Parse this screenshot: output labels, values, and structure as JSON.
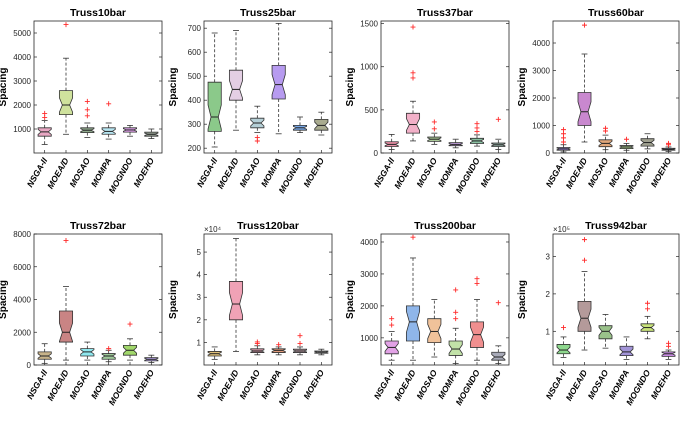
{
  "figure": {
    "ylabel_shared": "Spacing"
  },
  "chart_data": [
    {
      "type": "boxplot",
      "title": "Truss10bar",
      "ylabel": "Spacing",
      "categories": [
        "NSGA-II",
        "MOEA/D",
        "MOSAO",
        "MOMPA",
        "MOGNDO",
        "MOEHO"
      ],
      "ylim": [
        0,
        5500
      ],
      "yticks": [
        1000,
        2000,
        3000,
        4000,
        5000
      ],
      "exponent": "",
      "colors": [
        "#e8a7c3",
        "#cfe29d",
        "#8fa88c",
        "#b7e6f2",
        "#e2a2ee",
        "#95a093"
      ],
      "boxes": [
        {
          "min": 350,
          "q1": 700,
          "median": 880,
          "q3": 1050,
          "max": 1350,
          "outliers": [
            1480,
            1650
          ]
        },
        {
          "min": 780,
          "q1": 1600,
          "median": 2000,
          "q3": 2600,
          "max": 3950,
          "outliers": [
            5350
          ]
        },
        {
          "min": 650,
          "q1": 850,
          "median": 950,
          "q3": 1050,
          "max": 1250,
          "outliers": [
            1550,
            1800,
            2150
          ]
        },
        {
          "min": 580,
          "q1": 780,
          "median": 900,
          "q3": 1050,
          "max": 1250,
          "outliers": [
            2050
          ]
        },
        {
          "min": 700,
          "q1": 870,
          "median": 960,
          "q3": 1050,
          "max": 1150,
          "outliers": []
        },
        {
          "min": 600,
          "q1": 700,
          "median": 780,
          "q3": 870,
          "max": 1000,
          "outliers": []
        }
      ]
    },
    {
      "type": "boxplot",
      "title": "Truss25bar",
      "ylabel": "Spacing",
      "categories": [
        "NSGA-II",
        "MOEA/D",
        "MOSAO",
        "MOMPA",
        "MOGNDO",
        "MOEHO"
      ],
      "ylim": [
        180,
        730
      ],
      "yticks": [
        200,
        300,
        400,
        500,
        600,
        700
      ],
      "exponent": "",
      "colors": [
        "#8bc98a",
        "#e4cfe4",
        "#b5cfd6",
        "#b79bf0",
        "#78a8e8",
        "#a9ab8f"
      ],
      "boxes": [
        {
          "min": 205,
          "q1": 270,
          "median": 330,
          "q3": 475,
          "max": 680,
          "outliers": []
        },
        {
          "min": 275,
          "q1": 400,
          "median": 445,
          "q3": 525,
          "max": 690,
          "outliers": []
        },
        {
          "min": 265,
          "q1": 285,
          "median": 305,
          "q3": 325,
          "max": 375,
          "outliers": [
            230,
            245
          ]
        },
        {
          "min": 260,
          "q1": 405,
          "median": 465,
          "q3": 545,
          "max": 720,
          "outliers": []
        },
        {
          "min": 265,
          "q1": 275,
          "median": 285,
          "q3": 295,
          "max": 330,
          "outliers": []
        },
        {
          "min": 255,
          "q1": 275,
          "median": 295,
          "q3": 320,
          "max": 350,
          "outliers": []
        }
      ]
    },
    {
      "type": "boxplot",
      "title": "Truss37bar",
      "ylabel": "Spacing",
      "categories": [
        "NSGA-II",
        "MOEA/D",
        "MOSAO",
        "MOMPA",
        "MOGNDO",
        "MOEHO"
      ],
      "ylim": [
        0,
        1530
      ],
      "yticks": [
        0,
        500,
        1000,
        1500
      ],
      "exponent": "",
      "colors": [
        "#e98fa6",
        "#f2b0c8",
        "#a9c796",
        "#c6a2e2",
        "#8bc1a2",
        "#95b3a8"
      ],
      "boxes": [
        {
          "min": 40,
          "q1": 75,
          "median": 100,
          "q3": 130,
          "max": 215,
          "outliers": []
        },
        {
          "min": 140,
          "q1": 230,
          "median": 330,
          "q3": 460,
          "max": 600,
          "outliers": [
            870,
            930,
            1460
          ]
        },
        {
          "min": 100,
          "q1": 135,
          "median": 160,
          "q3": 185,
          "max": 230,
          "outliers": [
            280,
            360
          ]
        },
        {
          "min": 60,
          "q1": 85,
          "median": 100,
          "q3": 120,
          "max": 160,
          "outliers": []
        },
        {
          "min": 80,
          "q1": 110,
          "median": 140,
          "q3": 170,
          "max": 210,
          "outliers": [
            250,
            290,
            340
          ]
        },
        {
          "min": 40,
          "q1": 75,
          "median": 95,
          "q3": 115,
          "max": 160,
          "outliers": [
            390
          ]
        }
      ]
    },
    {
      "type": "boxplot",
      "title": "Truss60bar",
      "ylabel": "Spacing",
      "categories": [
        "NSGA-II",
        "MOEA/D",
        "MOSAO",
        "MOMPA",
        "MOGNDO",
        "MOEHO"
      ],
      "ylim": [
        0,
        4800
      ],
      "yticks": [
        0,
        1000,
        2000,
        3000,
        4000
      ],
      "exponent": "",
      "colors": [
        "#9a89d8",
        "#c988cf",
        "#e2a77a",
        "#a8c98c",
        "#9fa08f",
        "#8fa3c2"
      ],
      "boxes": [
        {
          "min": 40,
          "q1": 100,
          "median": 150,
          "q3": 200,
          "max": 300,
          "outliers": [
            400,
            550,
            700,
            850
          ]
        },
        {
          "min": 400,
          "q1": 1000,
          "median": 1500,
          "q3": 2200,
          "max": 3600,
          "outliers": [
            4650
          ]
        },
        {
          "min": 120,
          "q1": 230,
          "median": 350,
          "q3": 480,
          "max": 650,
          "outliers": [
            800,
            900
          ]
        },
        {
          "min": 100,
          "q1": 160,
          "median": 220,
          "q3": 270,
          "max": 350,
          "outliers": [
            500
          ]
        },
        {
          "min": 150,
          "q1": 250,
          "median": 380,
          "q3": 520,
          "max": 700,
          "outliers": []
        },
        {
          "min": 60,
          "q1": 100,
          "median": 130,
          "q3": 170,
          "max": 220,
          "outliers": [
            300,
            350
          ]
        }
      ]
    },
    {
      "type": "boxplot",
      "title": "Truss72bar",
      "ylabel": "Spacing",
      "categories": [
        "NSGA-II",
        "MOEA/D",
        "MOSAO",
        "MOMPA",
        "MOGNDO",
        "MOEHO"
      ],
      "ylim": [
        0,
        8000
      ],
      "yticks": [
        0,
        2000,
        4000,
        6000,
        8000
      ],
      "exponent": "",
      "colors": [
        "#c7b38a",
        "#c98484",
        "#8fe8ef",
        "#9fc99a",
        "#a2d86c",
        "#b6a2e8"
      ],
      "boxes": [
        {
          "min": 100,
          "q1": 350,
          "median": 550,
          "q3": 800,
          "max": 1300,
          "outliers": []
        },
        {
          "min": 300,
          "q1": 1400,
          "median": 2000,
          "q3": 3300,
          "max": 4800,
          "outliers": [
            7600
          ]
        },
        {
          "min": 300,
          "q1": 550,
          "median": 800,
          "q3": 1000,
          "max": 1400,
          "outliers": []
        },
        {
          "min": 200,
          "q1": 350,
          "median": 550,
          "q3": 700,
          "max": 900,
          "outliers": [
            1000
          ]
        },
        {
          "min": 300,
          "q1": 600,
          "median": 900,
          "q3": 1200,
          "max": 1600,
          "outliers": [
            2500
          ]
        },
        {
          "min": 150,
          "q1": 250,
          "median": 350,
          "q3": 450,
          "max": 600,
          "outliers": []
        }
      ]
    },
    {
      "type": "boxplot",
      "title": "Truss120bar",
      "ylabel": "Spacing",
      "categories": [
        "NSGA-II",
        "MOEA/D",
        "MOSAO",
        "MOMPA",
        "MOGNDO",
        "MOEHO"
      ],
      "ylim": [
        0,
        5.8
      ],
      "yticks": [
        1,
        2,
        3,
        4,
        5
      ],
      "exponent": "×10⁴",
      "colors": [
        "#e2c27a",
        "#f0a2b6",
        "#c98f9f",
        "#e09a7a",
        "#c0a0a8",
        "#a8a8a8"
      ],
      "boxes": [
        {
          "min": 0.25,
          "q1": 0.4,
          "median": 0.5,
          "q3": 0.6,
          "max": 0.8,
          "outliers": []
        },
        {
          "min": 0.6,
          "q1": 2.0,
          "median": 2.7,
          "q3": 3.7,
          "max": 5.6,
          "outliers": []
        },
        {
          "min": 0.45,
          "q1": 0.55,
          "median": 0.62,
          "q3": 0.72,
          "max": 0.85,
          "outliers": [
            0.95,
            1.02
          ]
        },
        {
          "min": 0.45,
          "q1": 0.55,
          "median": 0.65,
          "q3": 0.72,
          "max": 0.8,
          "outliers": [
            0.9
          ]
        },
        {
          "min": 0.45,
          "q1": 0.55,
          "median": 0.62,
          "q3": 0.7,
          "max": 0.8,
          "outliers": [
            0.95,
            1.3
          ]
        },
        {
          "min": 0.45,
          "q1": 0.52,
          "median": 0.57,
          "q3": 0.62,
          "max": 0.7,
          "outliers": []
        }
      ]
    },
    {
      "type": "boxplot",
      "title": "Truss200bar",
      "ylabel": "Spacing",
      "categories": [
        "NSGA-II",
        "MOEA/D",
        "MOSAO",
        "MOMPA",
        "MOGNDO",
        "MOEHO"
      ],
      "ylim": [
        150,
        4250
      ],
      "yticks": [
        1000,
        2000,
        3000,
        4000
      ],
      "exponent": "",
      "colors": [
        "#e2a2e6",
        "#8fb6ea",
        "#f0c29a",
        "#c2e2a8",
        "#f08f8f",
        "#a8aab8"
      ],
      "boxes": [
        {
          "min": 300,
          "q1": 500,
          "median": 700,
          "q3": 900,
          "max": 1200,
          "outliers": [
            1400,
            1600
          ]
        },
        {
          "min": 300,
          "q1": 900,
          "median": 1500,
          "q3": 2000,
          "max": 3500,
          "outliers": [
            4150
          ]
        },
        {
          "min": 400,
          "q1": 850,
          "median": 1200,
          "q3": 1600,
          "max": 2200,
          "outliers": []
        },
        {
          "min": 200,
          "q1": 450,
          "median": 650,
          "q3": 900,
          "max": 1300,
          "outliers": [
            1600,
            1800,
            2500
          ]
        },
        {
          "min": 300,
          "q1": 700,
          "median": 1100,
          "q3": 1500,
          "max": 2200,
          "outliers": [
            2700,
            2850
          ]
        },
        {
          "min": 200,
          "q1": 300,
          "median": 400,
          "q3": 550,
          "max": 750,
          "outliers": [
            2100
          ]
        }
      ]
    },
    {
      "type": "boxplot",
      "title": "Truss942bar",
      "ylabel": "Spacing",
      "categories": [
        "NSGA-II",
        "MOEA/D",
        "MOSAO",
        "MOMPA",
        "MOGNDO",
        "MOEHO"
      ],
      "ylim": [
        0.1,
        3.6
      ],
      "yticks": [
        1,
        2,
        3
      ],
      "exponent": "×10⁵",
      "colors": [
        "#8ed88e",
        "#b49a9a",
        "#9ac28a",
        "#a294d8",
        "#c8e27a",
        "#c88ae2"
      ],
      "boxes": [
        {
          "min": 0.3,
          "q1": 0.4,
          "median": 0.5,
          "q3": 0.65,
          "max": 0.85,
          "outliers": [
            1.1
          ]
        },
        {
          "min": 0.5,
          "q1": 1.0,
          "median": 1.35,
          "q3": 1.8,
          "max": 2.6,
          "outliers": [
            2.9,
            3.45
          ]
        },
        {
          "min": 0.55,
          "q1": 0.8,
          "median": 1.0,
          "q3": 1.15,
          "max": 1.45,
          "outliers": []
        },
        {
          "min": 0.25,
          "q1": 0.35,
          "median": 0.45,
          "q3": 0.6,
          "max": 0.85,
          "outliers": []
        },
        {
          "min": 0.8,
          "q1": 1.0,
          "median": 1.1,
          "q3": 1.2,
          "max": 1.4,
          "outliers": [
            1.6,
            1.75
          ]
        },
        {
          "min": 0.25,
          "q1": 0.33,
          "median": 0.4,
          "q3": 0.45,
          "max": 0.5,
          "outliers": [
            0.6,
            0.68
          ]
        }
      ]
    }
  ]
}
